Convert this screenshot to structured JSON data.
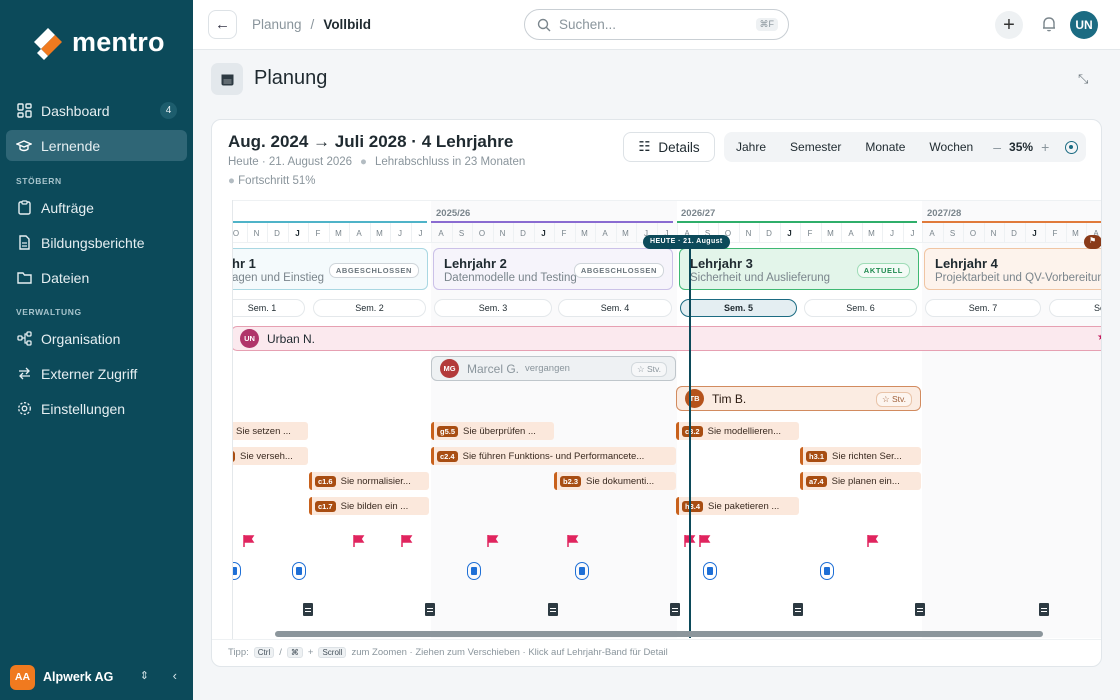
{
  "sidebar": {
    "logo": "mentro",
    "items": [
      {
        "label": "Dashboard",
        "badge": "4",
        "icon": "dashboard-icon"
      },
      {
        "label": "Lernende",
        "icon": "learners-icon",
        "active": true
      },
      {
        "label": "Aufträge",
        "icon": "clipboard-icon"
      },
      {
        "label": "Bildungsberichte",
        "icon": "report-icon"
      },
      {
        "label": "Dateien",
        "icon": "folder-icon"
      },
      {
        "label": "Organisation",
        "icon": "org-icon"
      },
      {
        "label": "Externer Zugriff",
        "icon": "swap-icon"
      },
      {
        "label": "Einstellungen",
        "icon": "gear-icon"
      }
    ],
    "section_browse": "STÖBERN",
    "section_admin": "VERWALTUNG",
    "org": {
      "initials": "AA",
      "name": "Alpwerk AG"
    }
  },
  "topbar": {
    "crumb_parent": "Planung",
    "crumb_sep": "/",
    "crumb_current": "Vollbild",
    "search_placeholder": "Suchen...",
    "search_kbd": "⌘F",
    "user_initials": "UN"
  },
  "page": {
    "title": "Planung"
  },
  "card": {
    "title": "Aug. 2024 → Juli 2028 · 4 Lehrjahre",
    "today": "Heute · 21. August 2026",
    "end": "Lehrabschluss in 23 Monaten",
    "progress": "Fortschritt 51%",
    "details_label": "Details",
    "zoom_options": [
      "Jahre",
      "Semester",
      "Monate",
      "Wochen"
    ],
    "zoom_minus": "–",
    "zoom_pct": "35%",
    "zoom_plus": "+"
  },
  "timeline": {
    "years": [
      {
        "label": "",
        "color": "#4fb3c8"
      },
      {
        "label": "2025/26",
        "color": "#8a6bd1"
      },
      {
        "label": "2026/27",
        "color": "#2fae6a"
      },
      {
        "label": "2027/28",
        "color": "#e07a3a"
      }
    ],
    "months_y1": [
      "O",
      "N",
      "D",
      "J",
      "F",
      "M",
      "A",
      "M",
      "J",
      "J"
    ],
    "months_y2": [
      "A",
      "S",
      "O",
      "N",
      "D",
      "J",
      "F",
      "M",
      "A",
      "M",
      "J",
      "J"
    ],
    "months_y3": [
      "A",
      "S",
      "O",
      "N",
      "D",
      "J",
      "F",
      "M",
      "A",
      "M",
      "J",
      "J"
    ],
    "months_y4": [
      "A",
      "S",
      "O",
      "N",
      "D",
      "J",
      "F",
      "M",
      "A"
    ],
    "bands": [
      {
        "title": "hr 1",
        "sub": "agen und Einstieg",
        "tag": "ABGESCHLOSSEN"
      },
      {
        "title": "Lehrjahr 2",
        "sub": "Datenmodelle und Testing",
        "tag": "ABGESCHLOSSEN"
      },
      {
        "title": "Lehrjahr 3",
        "sub": "Sicherheit und Auslieferung",
        "tag": "AKTUELL"
      },
      {
        "title": "Lehrjahr 4",
        "sub": "Projektarbeit und QV-Vorbereitung",
        "tag": ""
      }
    ],
    "semesters": [
      "Sem. 1",
      "Sem. 2",
      "Sem. 3",
      "Sem. 4",
      "Sem. 5",
      "Sem. 6",
      "Sem. 7",
      "Se"
    ],
    "today_badge": "HEUTE · 21. August",
    "people": [
      {
        "initials": "UN",
        "name": "Urban N.",
        "extra": "",
        "stv": ""
      },
      {
        "initials": "MG",
        "name": "Marcel G.",
        "extra": "vergangen",
        "stv": "☆ Stv."
      },
      {
        "initials": "TB",
        "name": "Tim B.",
        "extra": "",
        "stv": "☆ Stv."
      }
    ],
    "tasks": [
      {
        "code": "",
        "label": "Sie setzen ..."
      },
      {
        "code": "",
        "label": "Sie verseh..."
      },
      {
        "code": "c1.6",
        "label": "Sie normalisier..."
      },
      {
        "code": "c1.7",
        "label": "Sie bilden ein ..."
      },
      {
        "code": "g5.5",
        "label": "Sie überprüfen ..."
      },
      {
        "code": "c2.4",
        "label": "Sie führen Funktions- und Performancete..."
      },
      {
        "code": "b2.3",
        "label": "Sie dokumenti..."
      },
      {
        "code": "c3.2",
        "label": "Sie modellieren..."
      },
      {
        "code": "h3.4",
        "label": "Sie paketieren ..."
      },
      {
        "code": "h3.1",
        "label": "Sie richten Ser..."
      },
      {
        "code": "a7.4",
        "label": "Sie planen ein..."
      }
    ]
  },
  "tip": {
    "prefix": "Tipp:",
    "k1": "Ctrl",
    "slash": "/",
    "k2": "⌘",
    "plus": "+",
    "k3": "Scroll",
    "text": "zum Zoomen · Ziehen zum Verschieben · Klick auf Lehrjahr-Band für Detail"
  },
  "colors": {
    "sidebar": "#0c4a5a",
    "accent": "#1b6b82",
    "orange": "#f07a1f"
  }
}
